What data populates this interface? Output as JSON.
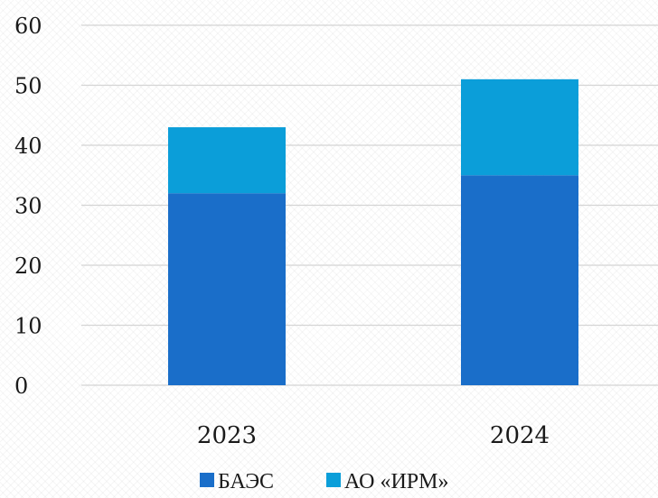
{
  "chart_data": {
    "type": "bar",
    "stacked": true,
    "categories": [
      "2023",
      "2024"
    ],
    "series": [
      {
        "name": "БАЭС",
        "values": [
          32,
          35
        ],
        "color": "#1a6ec9"
      },
      {
        "name": "АО «ИРМ»",
        "values": [
          11,
          16
        ],
        "color": "#0b9ed9"
      }
    ],
    "ylim": [
      0,
      60
    ],
    "yticks": [
      0,
      10,
      20,
      30,
      40,
      50,
      60
    ],
    "grid": true,
    "legend_position": "bottom",
    "title": "",
    "xlabel": "",
    "ylabel": ""
  }
}
